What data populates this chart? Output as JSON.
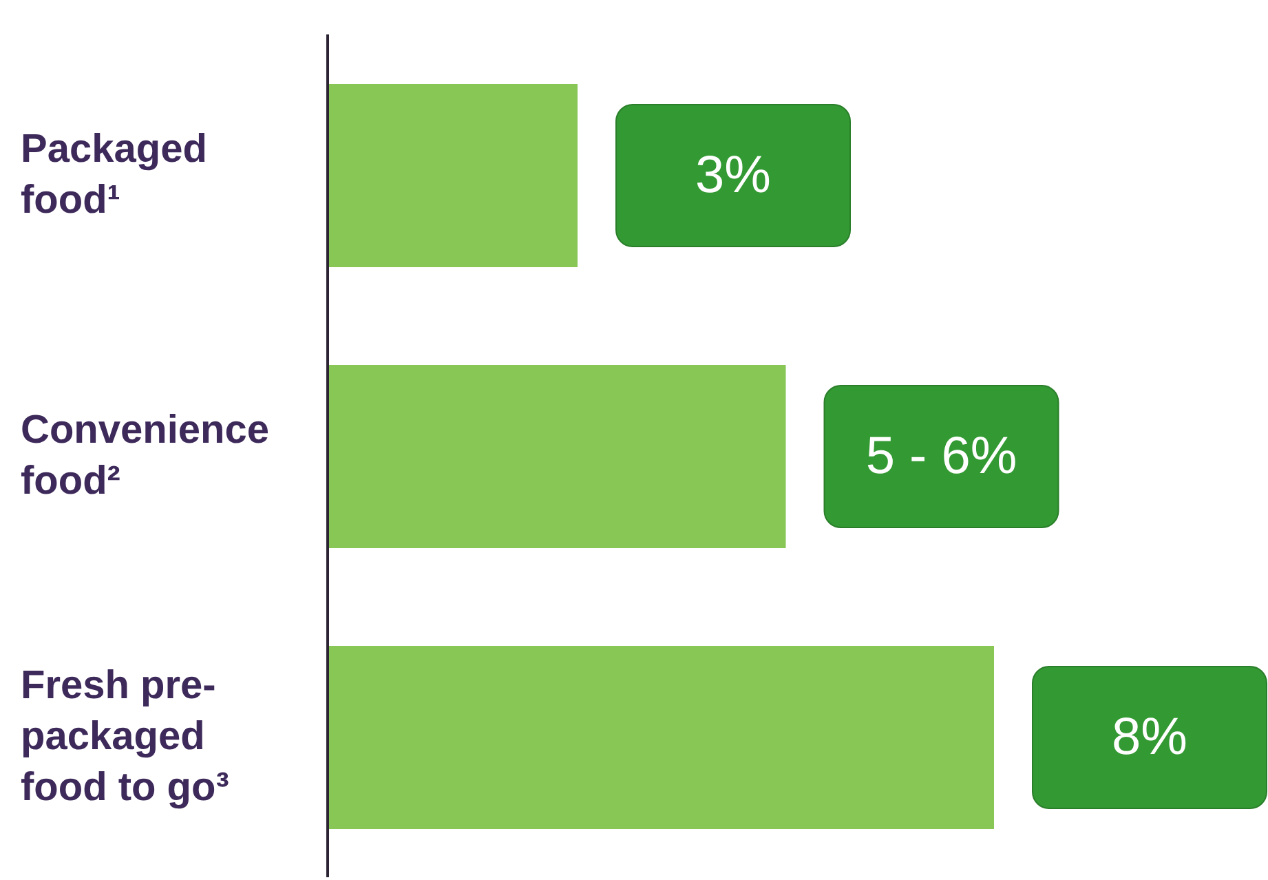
{
  "chart_data": {
    "type": "bar",
    "orientation": "horizontal",
    "xlim": [
      0,
      8
    ],
    "categories": [
      "Packaged food¹",
      "Convenience food²",
      "Fresh pre-packaged food to go³"
    ],
    "values": [
      3,
      5.5,
      8
    ],
    "value_labels": [
      "3%",
      "5 - 6%",
      "8%"
    ],
    "color": "#88c656"
  }
}
